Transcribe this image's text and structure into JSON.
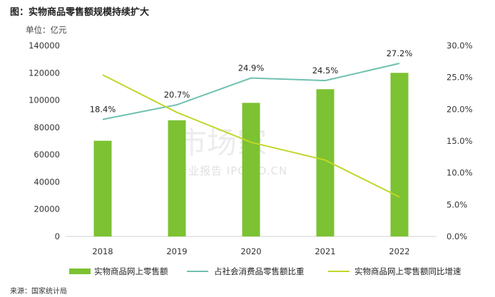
{
  "title": "图：实物商品零售额规模持续扩大",
  "unit": "单位：亿元",
  "source": "来源：国家统计局",
  "watermark": {
    "main": "市场家",
    "sub": "行业报告 IPOIPO.CN"
  },
  "colors": {
    "bar": "#7CC232",
    "share": "#6FC1B0",
    "growth": "#C2D62A"
  },
  "chart_data": {
    "type": "bar",
    "categories": [
      "2018",
      "2019",
      "2020",
      "2021",
      "2022"
    ],
    "series": [
      {
        "name": "实物商品网上零售额",
        "type": "bar",
        "axis": "left",
        "values": [
          70200,
          85200,
          98000,
          108000,
          120000
        ]
      },
      {
        "name": "占社会消费品零售额比重",
        "type": "line",
        "axis": "right",
        "values": [
          18.4,
          20.7,
          24.9,
          24.5,
          27.2
        ],
        "labels": [
          "18.4%",
          "20.7%",
          "24.9%",
          "24.5%",
          "27.2%"
        ]
      },
      {
        "name": "实物商品网上零售额同比增速",
        "type": "line",
        "axis": "right",
        "values": [
          25.4,
          19.5,
          14.8,
          12.0,
          6.2
        ]
      }
    ],
    "y_left": {
      "min": 0,
      "max": 140000,
      "ticks": [
        "0",
        "20000",
        "40000",
        "60000",
        "80000",
        "100000",
        "120000",
        "140000"
      ]
    },
    "y_right": {
      "min": 0,
      "max": 30,
      "ticks": [
        "0.0%",
        "5.0%",
        "10.0%",
        "15.0%",
        "20.0%",
        "25.0%",
        "30.0%"
      ]
    },
    "grid": false,
    "legend": "bottom"
  }
}
